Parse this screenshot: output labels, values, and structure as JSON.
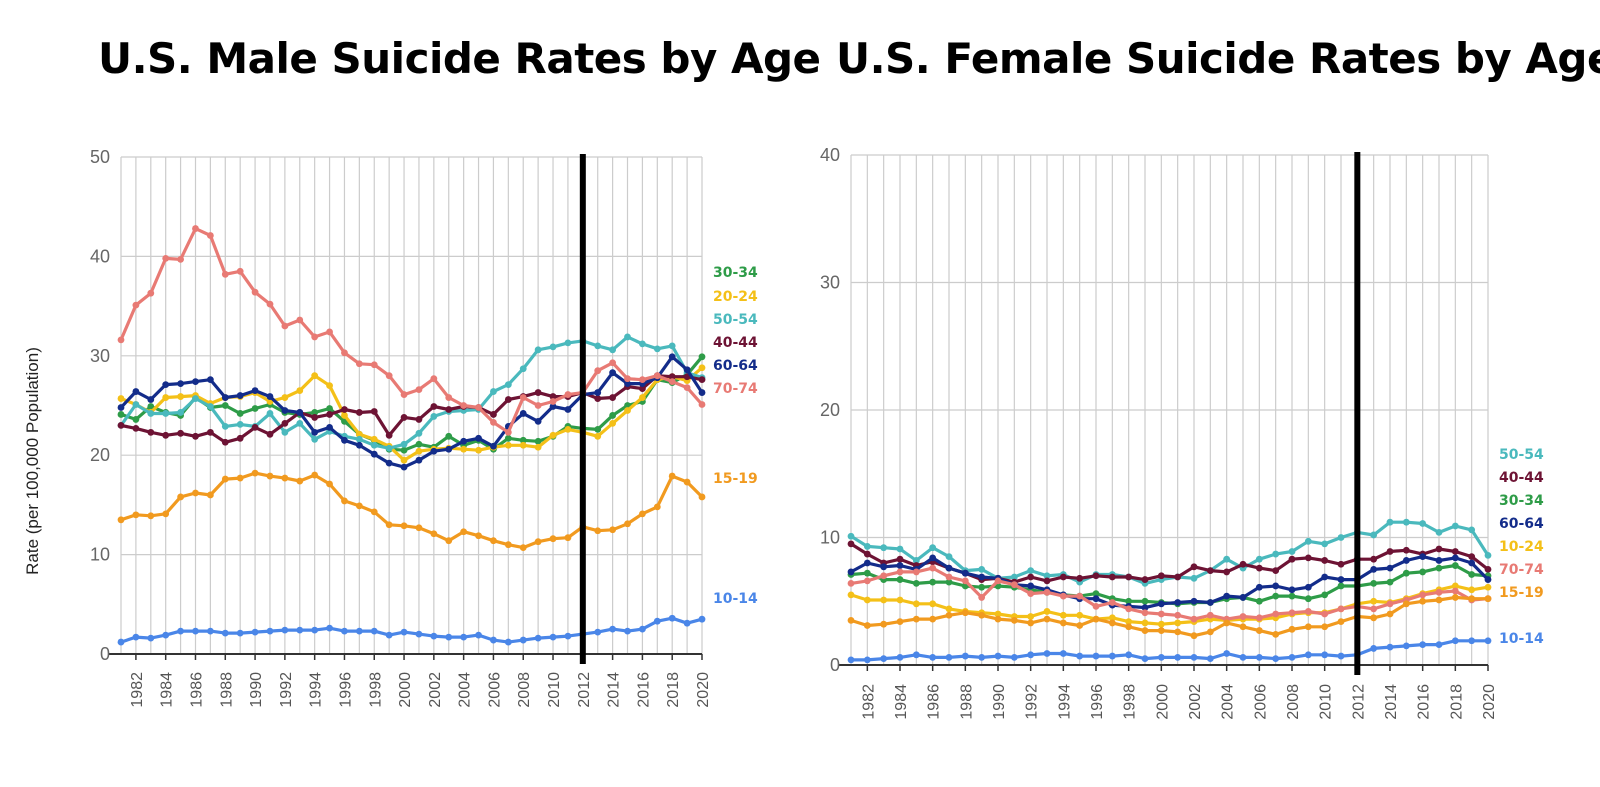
{
  "titles": {
    "male": "U.S. Male Suicide Rates by Age",
    "female": "U.S. Female Suicide Rates by Age"
  },
  "y_axis_label": "Rate (per 100,000 Population)",
  "chart_data": [
    {
      "type": "line",
      "title": "U.S. Male Suicide Rates by Age",
      "ylabel": "Rate (per 100,000 Population)",
      "ylim": [
        0,
        50
      ],
      "yticks": [
        0,
        10,
        20,
        30,
        40,
        50
      ],
      "xlim": [
        1981,
        2020
      ],
      "xticks": [
        1982,
        1984,
        1986,
        1988,
        1990,
        1992,
        1994,
        1996,
        1998,
        2000,
        2002,
        2004,
        2006,
        2008,
        2010,
        2012,
        2014,
        2016,
        2018,
        2020
      ],
      "grid": true,
      "marker_year": 2012,
      "x": [
        1981,
        1982,
        1983,
        1984,
        1985,
        1986,
        1987,
        1988,
        1989,
        1990,
        1991,
        1992,
        1993,
        1994,
        1995,
        1996,
        1997,
        1998,
        1999,
        2000,
        2001,
        2002,
        2003,
        2004,
        2005,
        2006,
        2007,
        2008,
        2009,
        2010,
        2011,
        2012,
        2013,
        2014,
        2015,
        2016,
        2017,
        2018,
        2019,
        2020
      ],
      "series": [
        {
          "name": "30-34",
          "color": "#2e9c48",
          "values": [
            24.1,
            23.6,
            24.9,
            24.3,
            24.0,
            25.8,
            24.8,
            25.0,
            24.2,
            24.7,
            25.1,
            24.3,
            24.1,
            24.3,
            24.7,
            23.4,
            22.1,
            21.5,
            20.6,
            20.5,
            21.1,
            20.8,
            21.9,
            21.0,
            21.5,
            20.6,
            21.7,
            21.5,
            21.4,
            21.9,
            22.9,
            22.7,
            22.6,
            24.0,
            25.0,
            25.4,
            27.6,
            27.3,
            28.1,
            29.9
          ]
        },
        {
          "name": "20-24",
          "color": "#f4c018",
          "values": [
            25.7,
            25.1,
            24.3,
            25.8,
            25.9,
            26.0,
            25.2,
            25.8,
            25.9,
            26.3,
            25.4,
            25.8,
            26.5,
            28.0,
            27.0,
            24.0,
            22.1,
            21.6,
            20.9,
            19.5,
            20.4,
            20.6,
            20.7,
            20.6,
            20.5,
            20.8,
            21.0,
            21.0,
            20.8,
            22.0,
            22.6,
            22.3,
            21.9,
            23.2,
            24.5,
            25.8,
            27.6,
            27.9,
            27.5,
            28.8
          ]
        },
        {
          "name": "50-54",
          "color": "#4ab9bd",
          "values": [
            23.0,
            25.1,
            24.2,
            24.2,
            24.3,
            25.7,
            24.9,
            22.9,
            23.1,
            22.9,
            24.2,
            22.3,
            23.2,
            21.6,
            22.4,
            21.9,
            21.6,
            21.0,
            20.7,
            21.1,
            22.2,
            23.9,
            24.4,
            24.5,
            24.6,
            26.4,
            27.1,
            28.7,
            30.6,
            30.9,
            31.3,
            31.5,
            31.0,
            30.6,
            31.9,
            31.2,
            30.7,
            31.0,
            28.3,
            27.8
          ]
        },
        {
          "name": "40-44",
          "color": "#6d1334",
          "values": [
            23.0,
            22.7,
            22.3,
            22.0,
            22.2,
            21.9,
            22.3,
            21.3,
            21.7,
            22.8,
            22.1,
            23.2,
            24.3,
            23.8,
            24.1,
            24.6,
            24.3,
            24.4,
            22.0,
            23.8,
            23.6,
            24.9,
            24.6,
            24.9,
            24.8,
            24.1,
            25.6,
            25.9,
            26.3,
            25.9,
            25.9,
            26.3,
            25.7,
            25.8,
            26.9,
            26.7,
            28.0,
            27.9,
            27.9,
            27.6
          ]
        },
        {
          "name": "60-64",
          "color": "#132c8a",
          "values": [
            24.8,
            26.4,
            25.6,
            27.1,
            27.2,
            27.4,
            27.6,
            25.8,
            26.0,
            26.5,
            25.9,
            24.5,
            24.3,
            22.3,
            22.8,
            21.5,
            21.0,
            20.1,
            19.2,
            18.8,
            19.5,
            20.4,
            20.6,
            21.4,
            21.7,
            20.9,
            22.9,
            24.2,
            23.4,
            24.9,
            24.6,
            26.1,
            26.3,
            28.3,
            27.2,
            27.2,
            27.8,
            29.9,
            28.6,
            26.3
          ]
        },
        {
          "name": "70-74",
          "color": "#e87a74",
          "values": [
            31.6,
            35.1,
            36.3,
            39.8,
            39.7,
            42.8,
            42.1,
            38.2,
            38.5,
            36.4,
            35.2,
            33.0,
            33.6,
            31.9,
            32.4,
            30.3,
            29.2,
            29.1,
            28.0,
            26.1,
            26.6,
            27.7,
            25.8,
            25.0,
            24.8,
            23.3,
            22.3,
            25.8,
            25.0,
            25.4,
            26.1,
            26.3,
            28.5,
            29.3,
            27.7,
            27.6,
            28.0,
            27.4,
            26.8,
            25.1
          ]
        },
        {
          "name": "15-19",
          "color": "#f19a1f",
          "values": [
            13.5,
            14.0,
            13.9,
            14.1,
            15.8,
            16.2,
            16.0,
            17.6,
            17.7,
            18.2,
            17.9,
            17.7,
            17.4,
            18.0,
            17.1,
            15.4,
            14.9,
            14.3,
            13.0,
            12.9,
            12.7,
            12.1,
            11.4,
            12.3,
            11.9,
            11.4,
            11.0,
            10.7,
            11.3,
            11.6,
            11.7,
            12.8,
            12.4,
            12.5,
            13.1,
            14.1,
            14.8,
            17.9,
            17.3,
            15.8
          ]
        },
        {
          "name": "10-14",
          "color": "#4a86e8",
          "values": [
            1.2,
            1.7,
            1.6,
            1.9,
            2.3,
            2.3,
            2.3,
            2.1,
            2.1,
            2.2,
            2.3,
            2.4,
            2.4,
            2.4,
            2.6,
            2.3,
            2.3,
            2.3,
            1.9,
            2.2,
            2.0,
            1.8,
            1.7,
            1.7,
            1.9,
            1.4,
            1.2,
            1.4,
            1.6,
            1.7,
            1.8,
            2.0,
            2.2,
            2.5,
            2.3,
            2.5,
            3.3,
            3.6,
            3.1,
            3.5
          ]
        }
      ]
    },
    {
      "type": "line",
      "title": "U.S. Female Suicide Rates by Age",
      "ylabel": "Rate (per 100,000 Population)",
      "ylim": [
        0,
        40
      ],
      "yticks": [
        0,
        10,
        20,
        30,
        40
      ],
      "xlim": [
        1981,
        2020
      ],
      "xticks": [
        1982,
        1984,
        1986,
        1988,
        1990,
        1992,
        1994,
        1996,
        1998,
        2000,
        2002,
        2004,
        2006,
        2008,
        2010,
        2012,
        2014,
        2016,
        2018,
        2020
      ],
      "grid": true,
      "marker_year": 2012,
      "x": [
        1981,
        1982,
        1983,
        1984,
        1985,
        1986,
        1987,
        1988,
        1989,
        1990,
        1991,
        1992,
        1993,
        1994,
        1995,
        1996,
        1997,
        1998,
        1999,
        2000,
        2001,
        2002,
        2003,
        2004,
        2005,
        2006,
        2007,
        2008,
        2009,
        2010,
        2011,
        2012,
        2013,
        2014,
        2015,
        2016,
        2017,
        2018,
        2019,
        2020
      ],
      "series": [
        {
          "name": "50-54",
          "color": "#4ab9bd",
          "values": [
            10.1,
            9.3,
            9.2,
            9.1,
            8.2,
            9.2,
            8.5,
            7.4,
            7.5,
            6.8,
            6.9,
            7.4,
            7.0,
            7.1,
            6.5,
            7.1,
            7.1,
            6.9,
            6.4,
            6.7,
            6.9,
            6.8,
            7.4,
            8.3,
            7.6,
            8.3,
            8.7,
            8.9,
            9.7,
            9.5,
            10.0,
            10.4,
            10.2,
            11.2,
            11.2,
            11.1,
            10.4,
            10.9,
            10.6,
            8.6
          ]
        },
        {
          "name": "40-44",
          "color": "#6d1334",
          "values": [
            9.5,
            8.7,
            8.0,
            8.3,
            7.8,
            8.1,
            7.6,
            7.2,
            6.7,
            6.8,
            6.5,
            6.9,
            6.6,
            6.9,
            6.8,
            7.0,
            6.9,
            6.9,
            6.7,
            7.0,
            6.9,
            7.7,
            7.4,
            7.3,
            7.9,
            7.6,
            7.4,
            8.3,
            8.4,
            8.2,
            7.9,
            8.3,
            8.3,
            8.9,
            9.0,
            8.7,
            9.1,
            8.9,
            8.5,
            7.5
          ]
        },
        {
          "name": "30-34",
          "color": "#2e9c48",
          "values": [
            7.1,
            7.2,
            6.7,
            6.7,
            6.4,
            6.5,
            6.5,
            6.2,
            6.1,
            6.2,
            6.1,
            5.9,
            5.7,
            5.5,
            5.4,
            5.6,
            5.2,
            5.0,
            5.0,
            4.9,
            4.8,
            4.9,
            4.9,
            5.2,
            5.3,
            5.0,
            5.4,
            5.4,
            5.2,
            5.5,
            6.2,
            6.2,
            6.4,
            6.5,
            7.2,
            7.3,
            7.6,
            7.8,
            7.1,
            7.0
          ]
        },
        {
          "name": "60-64",
          "color": "#132c8a",
          "values": [
            7.3,
            8.0,
            7.7,
            7.8,
            7.5,
            8.4,
            7.6,
            7.2,
            6.9,
            6.8,
            6.3,
            6.2,
            5.9,
            5.5,
            5.2,
            5.2,
            4.7,
            4.6,
            4.5,
            4.8,
            4.9,
            5.0,
            4.9,
            5.4,
            5.3,
            6.1,
            6.2,
            5.9,
            6.1,
            6.9,
            6.7,
            6.7,
            7.5,
            7.6,
            8.2,
            8.5,
            8.2,
            8.4,
            8.0,
            6.7
          ]
        },
        {
          "name": "10-24",
          "color": "#f4c018",
          "values": [
            5.5,
            5.1,
            5.1,
            5.1,
            4.8,
            4.8,
            4.4,
            4.2,
            4.1,
            4.0,
            3.8,
            3.8,
            4.2,
            3.9,
            3.9,
            3.6,
            3.7,
            3.4,
            3.3,
            3.2,
            3.3,
            3.4,
            3.6,
            3.5,
            3.6,
            3.6,
            3.7,
            4.0,
            4.1,
            4.1,
            4.4,
            4.8,
            5.0,
            4.9,
            5.2,
            5.6,
            5.9,
            6.2,
            5.9,
            6.1
          ]
        },
        {
          "name": "70-74",
          "color": "#e87a74",
          "values": [
            6.4,
            6.6,
            7.0,
            7.3,
            7.3,
            7.6,
            6.9,
            6.6,
            5.3,
            6.6,
            6.3,
            5.6,
            5.7,
            5.4,
            5.4,
            4.6,
            4.9,
            4.4,
            4.1,
            4.0,
            3.9,
            3.6,
            3.9,
            3.6,
            3.8,
            3.7,
            4.0,
            4.1,
            4.2,
            4.0,
            4.4,
            4.6,
            4.4,
            4.8,
            5.1,
            5.5,
            5.7,
            5.8,
            5.1,
            5.2
          ]
        },
        {
          "name": "15-19",
          "color": "#f19a1f",
          "values": [
            3.5,
            3.1,
            3.2,
            3.4,
            3.6,
            3.6,
            3.9,
            4.1,
            3.9,
            3.6,
            3.5,
            3.3,
            3.6,
            3.3,
            3.1,
            3.6,
            3.3,
            3.0,
            2.7,
            2.7,
            2.6,
            2.3,
            2.6,
            3.3,
            3.0,
            2.7,
            2.4,
            2.8,
            3.0,
            3.0,
            3.4,
            3.8,
            3.7,
            4.0,
            4.8,
            5.0,
            5.1,
            5.3,
            5.2,
            5.2
          ]
        },
        {
          "name": "10-14",
          "color": "#4a86e8",
          "values": [
            0.4,
            0.4,
            0.5,
            0.6,
            0.8,
            0.6,
            0.6,
            0.7,
            0.6,
            0.7,
            0.6,
            0.8,
            0.9,
            0.9,
            0.7,
            0.7,
            0.7,
            0.8,
            0.5,
            0.6,
            0.6,
            0.6,
            0.5,
            0.9,
            0.6,
            0.6,
            0.5,
            0.6,
            0.8,
            0.8,
            0.7,
            0.8,
            1.3,
            1.4,
            1.5,
            1.6,
            1.6,
            1.9,
            1.9,
            1.9
          ]
        }
      ]
    }
  ]
}
